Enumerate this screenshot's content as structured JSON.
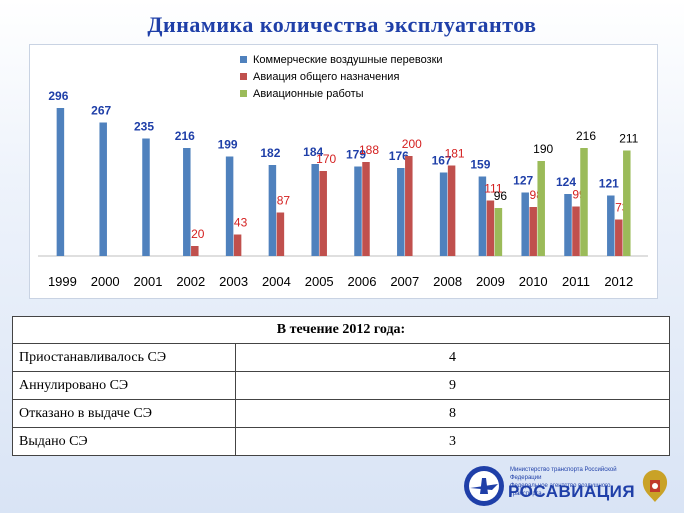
{
  "title": "Динамика  количества  эксплуатантов",
  "chart_data": {
    "type": "bar",
    "categories": [
      "1999",
      "2000",
      "2001",
      "2002",
      "2003",
      "2004",
      "2005",
      "2006",
      "2007",
      "2008",
      "2009",
      "2010",
      "2011",
      "2012"
    ],
    "series": [
      {
        "name": "Коммерческие воздушные перевозки",
        "color": "#4f81bd",
        "label_color": "#1f3fa8",
        "values": [
          296,
          267,
          235,
          216,
          199,
          182,
          184,
          179,
          176,
          167,
          159,
          127,
          124,
          121
        ]
      },
      {
        "name": "Авиация общего назначения",
        "color": "#c0504d",
        "label_color": "#d42020",
        "values": [
          null,
          null,
          null,
          20,
          43,
          87,
          170,
          188,
          200,
          181,
          111,
          98,
          99,
          73
        ]
      },
      {
        "name": "Авиационные работы",
        "color": "#9bbb59",
        "label_color": "#000000",
        "values": [
          null,
          null,
          null,
          null,
          null,
          null,
          null,
          null,
          null,
          null,
          96,
          190,
          216,
          211
        ]
      }
    ],
    "ylim": [
      0,
      320
    ],
    "grid": false,
    "legend_position": "top-center"
  },
  "table": {
    "header": "В течение 2012 года:",
    "rows": [
      {
        "label": "Приостанавливалось СЭ",
        "value": "4"
      },
      {
        "label": "Аннулировано СЭ",
        "value": "9"
      },
      {
        "label": "Отказано в выдаче СЭ",
        "value": "8"
      },
      {
        "label": "Выдано СЭ",
        "value": "3"
      }
    ]
  },
  "footer": {
    "ministry_line1": "Министерство транспорта Российской Федерации",
    "ministry_line2": "Федеральное агентство воздушного транспорта",
    "logo_text": "РОСАВИАЦИЯ"
  }
}
